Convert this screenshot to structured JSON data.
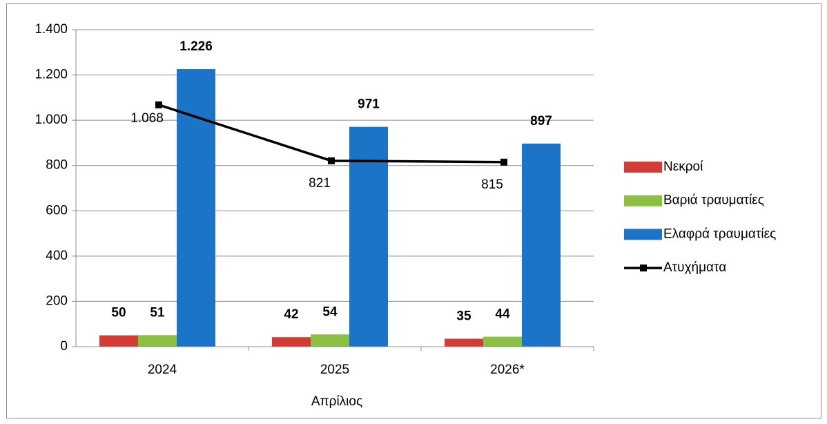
{
  "chart_data": {
    "type": "bar",
    "x_label": "Απρίλιος",
    "categories": [
      "2024",
      "2025",
      "2026*"
    ],
    "series": [
      {
        "name": "Νεκροί",
        "color": "#d23c34",
        "values": [
          50,
          42,
          35
        ]
      },
      {
        "name": "Βαριά τραυματίες",
        "color": "#8cc043",
        "values": [
          51,
          54,
          44
        ]
      },
      {
        "name": "Ελαφρά τραυματίες",
        "color": "#1c74c8",
        "values": [
          1226,
          971,
          897
        ],
        "value_labels": [
          "1.226",
          "971",
          "897"
        ]
      },
      {
        "name": "Ατυχήματα",
        "type": "line",
        "color": "#000000",
        "values": [
          1068,
          821,
          815
        ],
        "value_labels": [
          "1.068",
          "821",
          "815"
        ]
      }
    ],
    "ylim": [
      0,
      1400
    ],
    "yticks": [
      0,
      200,
      400,
      600,
      800,
      {
        "value": 1000,
        "label": "1.000"
      },
      {
        "value": 1200,
        "label": "1.200"
      },
      {
        "value": 1400,
        "label": "1.400"
      }
    ],
    "grid": true,
    "legend": "right"
  }
}
